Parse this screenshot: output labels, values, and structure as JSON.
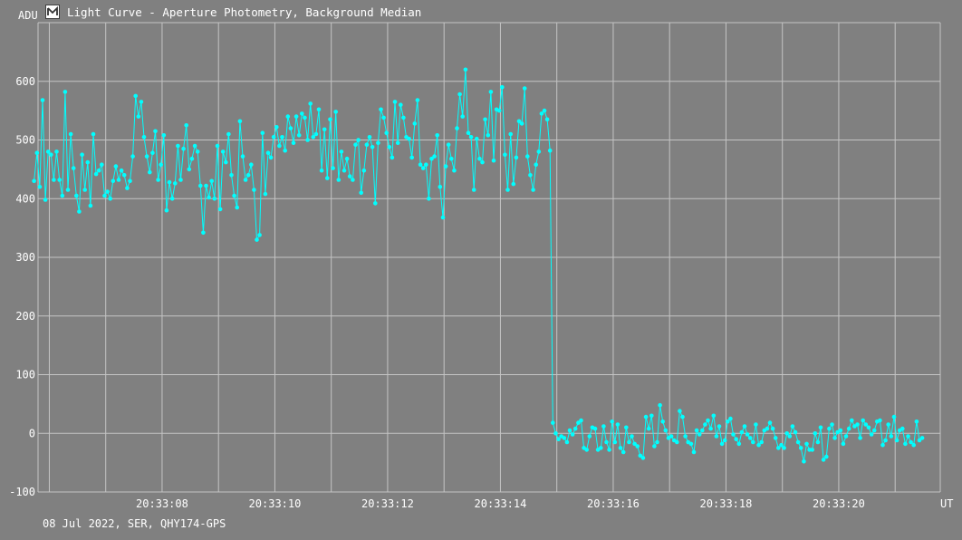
{
  "title": "Light Curve - Aperture Photometry, Background Median",
  "footer": "08 Jul 2022, SER, QHY174-GPS",
  "icon": "light-curve-app-icon",
  "colors": {
    "background": "#808080",
    "grid": "#c4c4c4",
    "series": "#00ffff",
    "text": "#ffffff"
  },
  "chart_data": {
    "type": "line",
    "title": "Light Curve - Aperture Photometry, Background Median",
    "ylabel": "ADU",
    "xlabel": "UT",
    "ylim": [
      -100,
      700
    ],
    "xlim": [
      "20:33:05.8",
      "20:33:21.8"
    ],
    "grid": true,
    "y_ticks": [
      600,
      500,
      400,
      300,
      200,
      100,
      0,
      -100
    ],
    "x_ticks": [
      "20:33:08",
      "20:33:10",
      "20:33:12",
      "20:33:14",
      "20:33:16",
      "20:33:18",
      "20:33:20"
    ],
    "series": [
      {
        "x_start": "20:33:05.73",
        "x_step_s": 0.05,
        "values": [
          430,
          478,
          420,
          568,
          398,
          480,
          475,
          432,
          480,
          432,
          405,
          582,
          415,
          510,
          452,
          405,
          378,
          475,
          415,
          462,
          388,
          510,
          442,
          448,
          458,
          405,
          412,
          400,
          430,
          455,
          432,
          448,
          440,
          418,
          430,
          472,
          575,
          540,
          565,
          505,
          472,
          445,
          478,
          515,
          432,
          458,
          508,
          380,
          428,
          400,
          426,
          490,
          432,
          485,
          525,
          450,
          468,
          490,
          480,
          422,
          342,
          422,
          402,
          430,
          400,
          490,
          382,
          480,
          462,
          510,
          440,
          405,
          385,
          532,
          472,
          432,
          440,
          458,
          415,
          330,
          338,
          512,
          408,
          478,
          470,
          505,
          522,
          490,
          505,
          482,
          540,
          520,
          495,
          540,
          508,
          545,
          538,
          500,
          562,
          505,
          510,
          552,
          448,
          518,
          435,
          535,
          452,
          548,
          432,
          480,
          448,
          468,
          438,
          432,
          492,
          500,
          410,
          448,
          492,
          505,
          488,
          392,
          495,
          552,
          538,
          512,
          488,
          470,
          565,
          495,
          560,
          538,
          505,
          502,
          470,
          528,
          568,
          458,
          452,
          458,
          400,
          468,
          472,
          508,
          420,
          368,
          455,
          492,
          468,
          448,
          520,
          578,
          540,
          620,
          512,
          505,
          415,
          502,
          468,
          462,
          535,
          508,
          582,
          465,
          552,
          550,
          590,
          475,
          415,
          510,
          425,
          470,
          532,
          528,
          588,
          472,
          440,
          415,
          458,
          480,
          545,
          550,
          535,
          482,
          18,
          0,
          -10,
          -5,
          -8,
          -15,
          5,
          -2,
          8,
          18,
          22,
          -25,
          -28,
          -5,
          10,
          8,
          -28,
          -25,
          12,
          -15,
          -28,
          20,
          -15,
          15,
          -25,
          -32,
          10,
          -15,
          -5,
          -18,
          -22,
          -38,
          -42,
          28,
          8,
          30,
          -22,
          -15,
          48,
          20,
          5,
          -8,
          -5,
          -12,
          -15,
          38,
          28,
          -5,
          -15,
          -18,
          -32,
          5,
          -2,
          5,
          15,
          22,
          8,
          30,
          -5,
          12,
          -18,
          -12,
          20,
          25,
          -2,
          -10,
          -18,
          2,
          12,
          -2,
          -8,
          -15,
          15,
          -20,
          -15,
          5,
          8,
          18,
          8,
          -8,
          -25,
          -20,
          -25,
          0,
          -5,
          12,
          2,
          -15,
          -25,
          -48,
          -18,
          -28,
          -28,
          0,
          -15,
          10,
          -45,
          -40,
          8,
          15,
          -8,
          2,
          5,
          -18,
          -5,
          8,
          22,
          12,
          15,
          -8,
          22,
          15,
          10,
          -2,
          5,
          20,
          22,
          -20,
          -12,
          15,
          -5,
          28,
          -12,
          5,
          8,
          -18,
          -5,
          -15,
          -20,
          20,
          -12,
          -8
        ]
      }
    ]
  }
}
